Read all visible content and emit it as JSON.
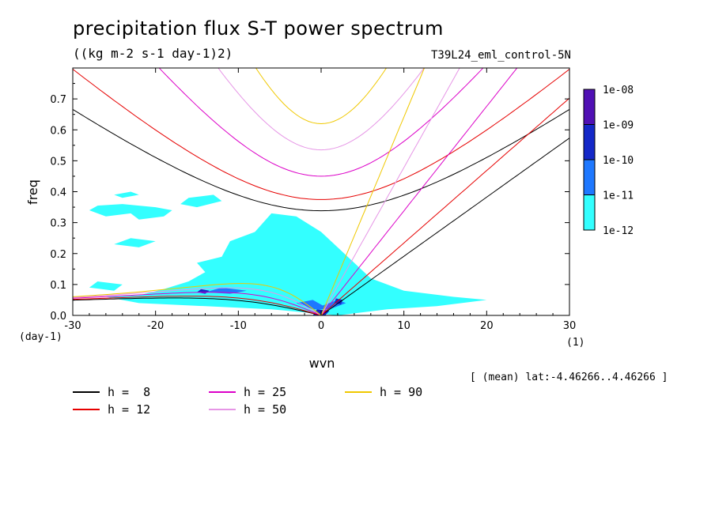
{
  "title": "precipitation flux S-T power spectrum",
  "units": "((kg m-2 s-1 day-1)2)",
  "case_name": "T39L24_eml_control-5N",
  "mean_info": "[ (mean) lat:-4.46266..4.46266 ]",
  "chart_data": {
    "type": "heatmap",
    "xlabel": "wvn",
    "ylabel": "freq",
    "x_unit_label": "(1)",
    "y_unit_label": "(day-1)",
    "xlim": [
      -30,
      30
    ],
    "ylim": [
      0,
      0.8
    ],
    "x_ticks": [
      -30,
      -20,
      -10,
      0,
      10,
      20,
      30
    ],
    "x_tick_labels": [
      "-30",
      "-20",
      "-10",
      "0",
      "10",
      "20",
      "30"
    ],
    "y_ticks": [
      0,
      0.1,
      0.2,
      0.3,
      0.4,
      0.5,
      0.6,
      0.7
    ],
    "y_tick_labels": [
      "0.0",
      "0.1",
      "0.2",
      "0.3",
      "0.4",
      "0.5",
      "0.6",
      "0.7"
    ],
    "colorbar": {
      "levels": [
        "1e-12",
        "1e-11",
        "1e-10",
        "1e-09",
        "1e-08"
      ],
      "colors": [
        "#33ffff",
        "#1e78ff",
        "#1428c8",
        "#0a0ab4",
        "#5010b4"
      ]
    },
    "spectral_regions": [
      {
        "level": "1e-12",
        "polygons": [
          [
            [
              -26,
              0.06
            ],
            [
              -22,
              0.065
            ],
            [
              -19,
              0.085
            ],
            [
              -16,
              0.11
            ],
            [
              -14,
              0.14
            ],
            [
              -15,
              0.17
            ],
            [
              -12,
              0.19
            ],
            [
              -11,
              0.24
            ],
            [
              -8,
              0.27
            ],
            [
              -6,
              0.33
            ],
            [
              -3,
              0.32
            ],
            [
              0,
              0.27
            ],
            [
              2,
              0.22
            ],
            [
              4,
              0.17
            ],
            [
              6,
              0.12
            ],
            [
              10,
              0.08
            ],
            [
              16,
              0.06
            ],
            [
              20,
              0.05
            ],
            [
              14,
              0.03
            ],
            [
              8,
              0.02
            ],
            [
              2,
              0.0
            ],
            [
              -6,
              0.02
            ],
            [
              -14,
              0.03
            ],
            [
              -22,
              0.04
            ]
          ],
          [
            [
              -28,
              0.34
            ],
            [
              -26,
              0.32
            ],
            [
              -23,
              0.33
            ],
            [
              -22,
              0.31
            ],
            [
              -19,
              0.32
            ],
            [
              -18,
              0.34
            ],
            [
              -20,
              0.35
            ],
            [
              -24,
              0.36
            ],
            [
              -27,
              0.355
            ]
          ],
          [
            [
              -17,
              0.36
            ],
            [
              -15,
              0.35
            ],
            [
              -12,
              0.37
            ],
            [
              -13,
              0.39
            ],
            [
              -16,
              0.38
            ]
          ],
          [
            [
              -25,
              0.23
            ],
            [
              -22,
              0.22
            ],
            [
              -20,
              0.24
            ],
            [
              -23,
              0.25
            ]
          ],
          [
            [
              -24,
              0.38
            ],
            [
              -22,
              0.39
            ],
            [
              -23,
              0.4
            ],
            [
              -25,
              0.39
            ]
          ],
          [
            [
              -28,
              0.09
            ],
            [
              -25,
              0.08
            ],
            [
              -24,
              0.1
            ],
            [
              -27,
              0.11
            ]
          ]
        ]
      },
      {
        "level": "1e-11",
        "polygons": [
          [
            [
              -14,
              0.075
            ],
            [
              -11,
              0.07
            ],
            [
              -9,
              0.08
            ],
            [
              -12,
              0.09
            ]
          ],
          [
            [
              -3,
              0.04
            ],
            [
              -1,
              0.02
            ],
            [
              1,
              0.02
            ],
            [
              -1,
              0.05
            ]
          ],
          [
            [
              1,
              0.02
            ],
            [
              3,
              0.04
            ],
            [
              2,
              0.05
            ],
            [
              0,
              0.03
            ]
          ]
        ]
      },
      {
        "level": "1e-10",
        "polygons": [
          [
            [
              -1,
              0.0
            ],
            [
              0.5,
              0.0
            ],
            [
              1,
              0.015
            ],
            [
              -0.5,
              0.02
            ]
          ],
          [
            [
              1.6,
              0.04
            ],
            [
              2.4,
              0.035
            ],
            [
              2.6,
              0.05
            ],
            [
              1.8,
              0.055
            ]
          ],
          [
            [
              -15,
              0.075
            ],
            [
              -14,
              0.07
            ],
            [
              -13.5,
              0.08
            ],
            [
              -14.5,
              0.085
            ]
          ]
        ]
      }
    ],
    "dispersion_curves": [
      {
        "name": "h =  8",
        "color": "#000000",
        "h": 8
      },
      {
        "name": "h = 12",
        "color": "#e60000",
        "h": 12
      },
      {
        "name": "h = 25",
        "color": "#dc00c8",
        "h": 25
      },
      {
        "name": "h = 50",
        "color": "#e696e6",
        "h": 50
      },
      {
        "name": "h = 90",
        "color": "#f0c800",
        "h": 90
      }
    ]
  }
}
